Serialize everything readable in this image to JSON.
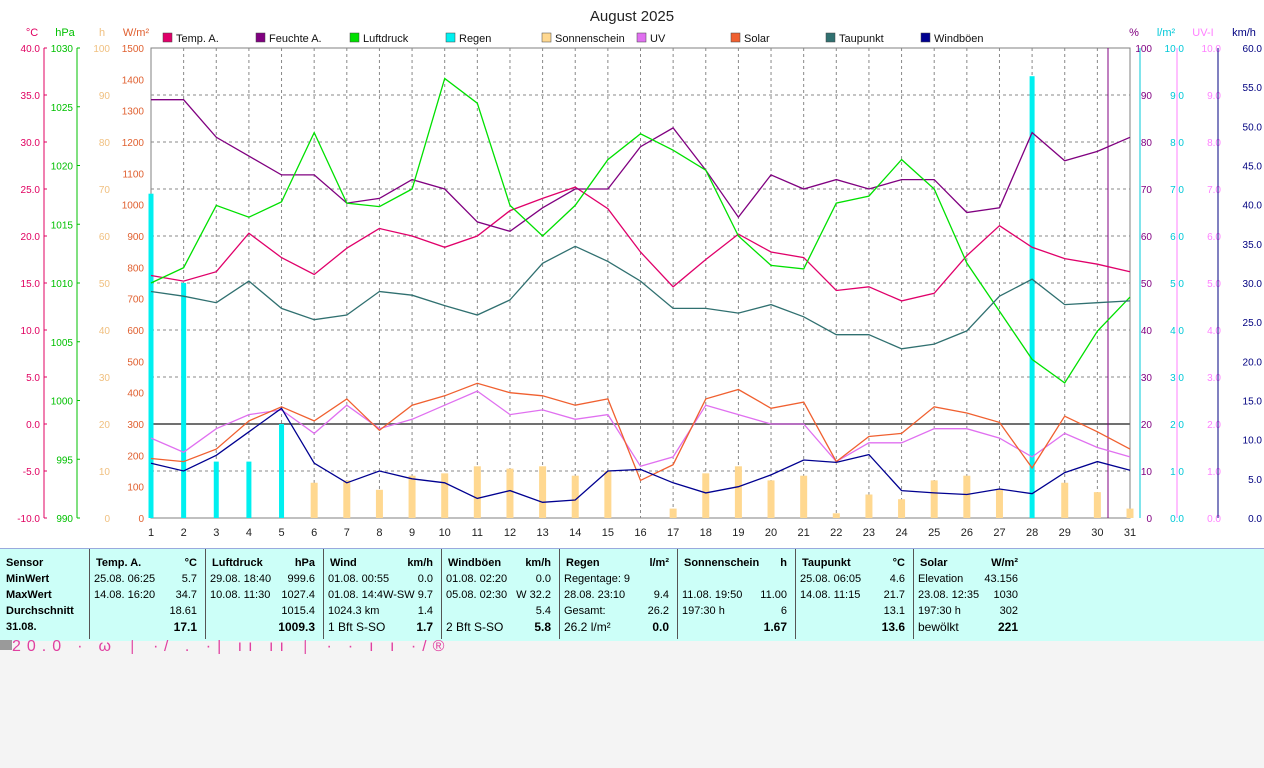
{
  "chart_data": {
    "type": "line",
    "title": "August 2025",
    "x": [
      1,
      2,
      3,
      4,
      5,
      6,
      7,
      8,
      9,
      10,
      11,
      12,
      13,
      14,
      15,
      16,
      17,
      18,
      19,
      20,
      21,
      22,
      23,
      24,
      25,
      26,
      27,
      28,
      29,
      30,
      31
    ],
    "axes": [
      {
        "unit": "°C",
        "ticks": [
          "40.0",
          "35.0",
          "30.0",
          "25.0",
          "20.0",
          "15.0",
          "10.0",
          "5.0",
          "0.0",
          "-5.0",
          "-10.0"
        ],
        "min": -10,
        "max": 40,
        "color": "#e00060"
      },
      {
        "unit": "hPa",
        "ticks": [
          "1030",
          "1025",
          "1020",
          "1015",
          "1010",
          "1005",
          "1000",
          "995",
          "990"
        ],
        "min": 990,
        "max": 1030,
        "color": "#00c000"
      },
      {
        "unit": "h",
        "ticks": [
          "100",
          "90",
          "80",
          "70",
          "60",
          "50",
          "40",
          "30",
          "20",
          "10",
          "0"
        ],
        "min": 0,
        "max": 100,
        "color": "#f0c080"
      },
      {
        "unit": "W/m²",
        "ticks": [
          "1500",
          "1400",
          "1300",
          "1200",
          "1100",
          "1000",
          "900",
          "800",
          "700",
          "600",
          "500",
          "400",
          "300",
          "200",
          "100",
          "0"
        ],
        "min": 0,
        "max": 1500,
        "color": "#e06030"
      },
      {
        "unit": "%",
        "ticks": [
          "100",
          "90",
          "80",
          "70",
          "60",
          "50",
          "40",
          "30",
          "20",
          "10",
          "0"
        ],
        "min": 0,
        "max": 100,
        "color": "#800080"
      },
      {
        "unit": "l/m²",
        "ticks": [
          "10.0",
          "9.0",
          "8.0",
          "7.0",
          "6.0",
          "5.0",
          "4.0",
          "3.0",
          "2.0",
          "1.0",
          "0.0"
        ],
        "min": 0,
        "max": 10,
        "color": "#00c8d8"
      },
      {
        "unit": "UV-I",
        "ticks": [
          "10.0",
          "9.0",
          "8.0",
          "7.0",
          "6.0",
          "5.0",
          "4.0",
          "3.0",
          "2.0",
          "1.0",
          "0.0"
        ],
        "min": 0,
        "max": 10,
        "color": "#ff80ff"
      },
      {
        "unit": "km/h",
        "ticks": [
          "60.0",
          "55.0",
          "50.0",
          "45.0",
          "40.0",
          "35.0",
          "30.0",
          "25.0",
          "20.0",
          "15.0",
          "10.0",
          "5.0",
          "0.0"
        ],
        "min": 0,
        "max": 60,
        "color": "#000080"
      }
    ],
    "legend": [
      "Temp. A.",
      "Feuchte A.",
      "Luftdruck",
      "Regen",
      "Sonnenschein",
      "UV",
      "Solar",
      "Taupunkt",
      "Windböen"
    ],
    "series": [
      {
        "name": "Temp. A.",
        "axis": 0,
        "color": "#e0006a",
        "values": [
          15.8,
          15.2,
          16.2,
          20.3,
          17.7,
          15.9,
          18.7,
          20.8,
          20.0,
          18.8,
          20.0,
          22.7,
          24.0,
          25.2,
          22.9,
          18.3,
          14.6,
          17.5,
          20.2,
          18.3,
          17.7,
          14.2,
          14.6,
          13.1,
          13.9,
          17.9,
          21.1,
          18.8,
          17.6,
          17.0,
          16.2
        ]
      },
      {
        "name": "Feuchte A.",
        "axis": 4,
        "color": "#800080",
        "values": [
          89,
          89,
          81,
          77,
          73,
          73,
          67,
          68,
          72,
          70,
          63,
          61,
          66,
          70,
          70,
          79,
          83,
          74,
          64,
          73,
          70,
          72,
          70,
          72,
          72,
          65,
          66,
          82,
          76,
          78,
          81
        ]
      },
      {
        "name": "Luftdruck",
        "axis": 1,
        "color": "#00e000",
        "values": [
          1010.0,
          1011.3,
          1016.6,
          1015.6,
          1016.9,
          1022.8,
          1016.8,
          1016.5,
          1018.0,
          1027.4,
          1025.3,
          1016.6,
          1014.0,
          1016.6,
          1020.5,
          1022.7,
          1021.3,
          1019.6,
          1014.0,
          1011.5,
          1011.2,
          1016.8,
          1017.4,
          1020.5,
          1018.0,
          1011.7,
          1007.6,
          1003.5,
          1001.5,
          1005.9,
          1008.8
        ]
      },
      {
        "name": "Regen",
        "axis": 5,
        "type": "bar",
        "color": "#00f0f0",
        "values": [
          6.9,
          5.0,
          1.2,
          1.2,
          2.0,
          0.2,
          0,
          0,
          0,
          0,
          0,
          0,
          0,
          0,
          0,
          0,
          0,
          0.2,
          0,
          0,
          0,
          0,
          0,
          0,
          0,
          0,
          0,
          9.4,
          0.2,
          0,
          0
        ]
      },
      {
        "name": "Sonnenschein",
        "axis": 2,
        "type": "bar",
        "color": "#ffd890",
        "values": [
          0,
          0,
          0,
          0,
          0,
          7.5,
          8,
          6,
          9,
          9.5,
          11,
          10.5,
          11,
          9,
          10,
          0,
          2,
          9.5,
          11,
          8,
          9,
          1,
          5,
          4,
          8,
          9,
          6,
          0,
          7.5,
          5.5,
          2
        ]
      },
      {
        "name": "UV",
        "axis": 6,
        "color": "#e070f0",
        "values": [
          1.7,
          1.4,
          1.9,
          2.2,
          2.3,
          1.8,
          2.4,
          1.9,
          2.1,
          2.4,
          2.7,
          2.2,
          2.3,
          2.1,
          2.2,
          1.1,
          1.3,
          2.4,
          2.2,
          2.0,
          2.0,
          1.2,
          1.6,
          1.6,
          1.9,
          1.9,
          1.7,
          1.3,
          1.8,
          1.5,
          1.3
        ]
      },
      {
        "name": "Solar",
        "axis": 3,
        "color": "#f06030",
        "values": [
          190,
          180,
          220,
          310,
          355,
          310,
          380,
          280,
          360,
          390,
          430,
          400,
          390,
          360,
          380,
          120,
          170,
          380,
          410,
          350,
          370,
          180,
          260,
          270,
          355,
          335,
          305,
          160,
          325,
          275,
          220
        ]
      },
      {
        "name": "Taupunkt",
        "axis": 0,
        "color": "#307070",
        "values": [
          14.1,
          13.6,
          12.9,
          15.2,
          12.3,
          11.1,
          11.6,
          14.1,
          13.7,
          12.6,
          11.6,
          13.2,
          17.1,
          18.9,
          17.3,
          15.2,
          12.3,
          12.3,
          11.8,
          12.7,
          11.4,
          9.5,
          9.5,
          8.0,
          8.5,
          9.9,
          13.6,
          15.4,
          12.7,
          12.9,
          13.1
        ]
      },
      {
        "name": "Windböen",
        "axis": 7,
        "color": "#000090",
        "values": [
          7,
          6,
          8,
          11,
          14,
          7,
          4.5,
          6,
          5,
          4.5,
          2.5,
          3.5,
          2,
          2.3,
          6,
          6.2,
          4.5,
          3.2,
          4,
          5.5,
          7.4,
          7.1,
          8.1,
          3.5,
          3.2,
          3,
          3.7,
          3.1,
          5.8,
          7.2,
          6.1
        ]
      }
    ],
    "grid": true,
    "legend_position": "top"
  },
  "stats": {
    "sensor": {
      "header": "Sensor",
      "rows": [
        "MinWert",
        "MaxWert",
        "Durchschnitt",
        "31.08."
      ]
    },
    "temp": {
      "header": "Temp. A.",
      "unit": "°C",
      "rows": [
        [
          "25.08.  06:25",
          "5.7"
        ],
        [
          "14.08.  16:20",
          "34.7"
        ],
        [
          "",
          "18.61"
        ],
        [
          "",
          "17.1"
        ]
      ]
    },
    "pressure": {
      "header": "Luftdruck",
      "unit": "hPa",
      "rows": [
        [
          "29.08.  18:40",
          "999.6"
        ],
        [
          "10.08.  11:30",
          "1027.4"
        ],
        [
          "",
          "1015.4"
        ],
        [
          "",
          "1009.3"
        ]
      ]
    },
    "wind": {
      "header": "Wind",
      "unit": "km/h",
      "rows": [
        [
          "01.08.  00:55",
          "0.0"
        ],
        [
          "01.08.  14:4",
          "W-SW  9.7"
        ],
        [
          "1024.3 km",
          "1.4"
        ],
        [
          "1 Bft S-SO",
          "1.7"
        ]
      ]
    },
    "gusts": {
      "header": "Windböen",
      "unit": "km/h",
      "rows": [
        [
          "01.08.  02:20",
          "0.0"
        ],
        [
          "05.08.  02:30",
          "W  32.2"
        ],
        [
          "",
          "5.4"
        ],
        [
          "2 Bft S-SO",
          "5.8"
        ]
      ]
    },
    "rain": {
      "header": "Regen",
      "unit": "l/m²",
      "rows": [
        [
          "Regentage: 9",
          ""
        ],
        [
          "28.08.  23:10",
          "9.4"
        ],
        [
          "Gesamt:",
          "26.2"
        ],
        [
          "26.2 l/m²",
          "0.0"
        ]
      ]
    },
    "sunshine": {
      "header": "Sonnenschein",
      "unit": "h",
      "rows": [
        [
          "",
          ""
        ],
        [
          "11.08.  19:50",
          "11.00"
        ],
        [
          "197:30 h",
          "6"
        ],
        [
          "",
          "1.67"
        ]
      ]
    },
    "dewpoint": {
      "header": "Taupunkt",
      "unit": "°C",
      "rows": [
        [
          "25.08.  06:05",
          "4.6"
        ],
        [
          "14.08.  11:15",
          "21.7"
        ],
        [
          "",
          "13.1"
        ],
        [
          "",
          "13.6"
        ]
      ]
    },
    "solar": {
      "header": "Solar",
      "unit": "W/m²",
      "rows": [
        [
          "Elevation",
          "43.156"
        ],
        [
          "23.08.  12:35",
          "1030"
        ],
        [
          "197:30 h",
          "302"
        ],
        [
          "bewölkt",
          "221"
        ]
      ]
    }
  },
  "footer": {
    "ghost_text": "20.0   ∙  ω  ⌠  ∙/  .  ·|  ıı  ıı  ⌠  ·  ∙  ı ı  ·/®"
  }
}
